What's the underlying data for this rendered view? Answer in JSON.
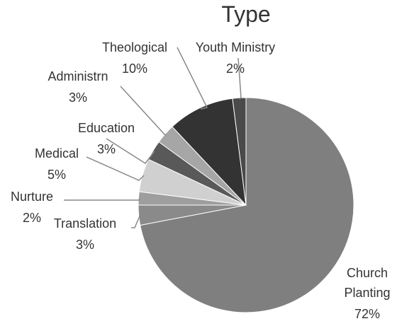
{
  "chart_data": {
    "type": "pie",
    "title": "Type",
    "categories": [
      "Church Planting",
      "Translation",
      "Nurture",
      "Medical",
      "Education",
      "Administrn",
      "Theological",
      "Youth Ministry"
    ],
    "values": [
      72,
      3,
      2,
      5,
      3,
      3,
      10,
      2
    ],
    "value_labels": [
      "72%",
      "3%",
      "2%",
      "5%",
      "3%",
      "3%",
      "10%",
      "2%"
    ],
    "colors": [
      "#7f7f7f",
      "#8a8a8a",
      "#9e9e9e",
      "#d0d0d0",
      "#595959",
      "#a6a6a6",
      "#333333",
      "#4a4a4a"
    ]
  }
}
